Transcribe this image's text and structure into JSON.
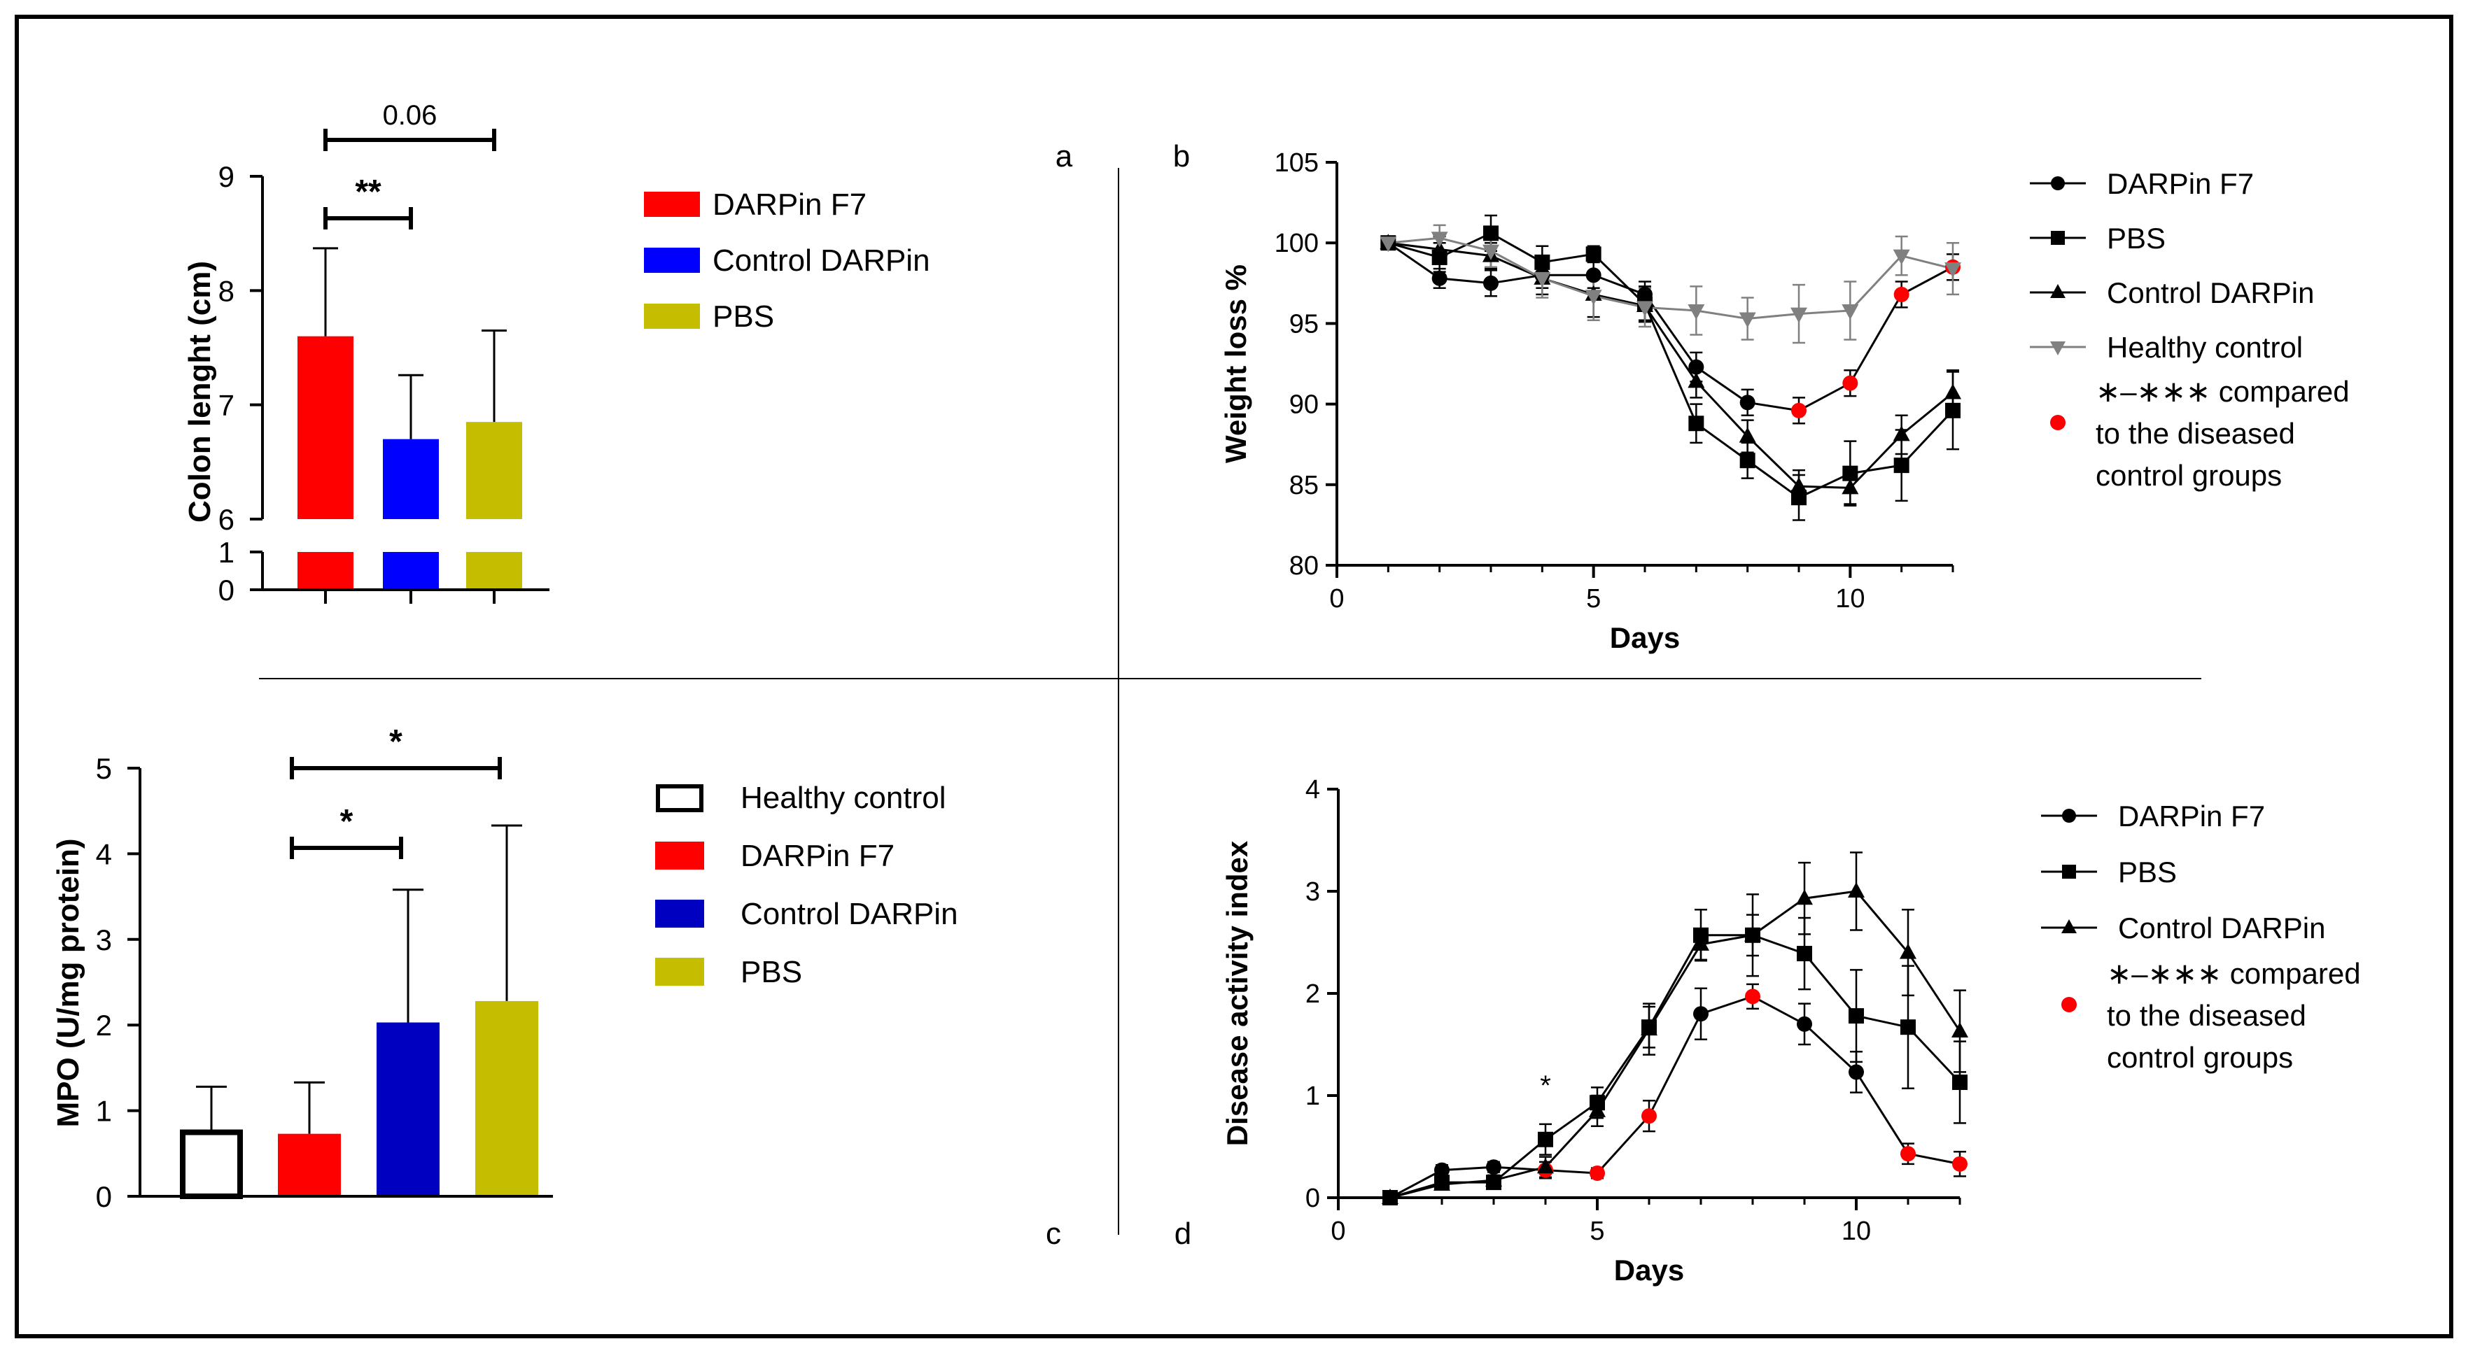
{
  "panel_labels": {
    "a": "a",
    "b": "b",
    "c": "c",
    "d": "d"
  },
  "colors": {
    "red": "#ff0000",
    "blue": "#0000ff",
    "darkblue": "#0000c0",
    "olive": "#c4bd00",
    "gray": "#808080",
    "black": "#000000",
    "white": "#ffffff",
    "sigRed": "#ff0000"
  },
  "chart_data": [
    {
      "id": "a",
      "type": "bar",
      "ylabel": "Colon lenght (cm)",
      "broken_axis": true,
      "ylim_lower": [
        0,
        1
      ],
      "ylim_upper": [
        6,
        9
      ],
      "yticks_lower": [
        "0",
        "1"
      ],
      "yticks_upper": [
        "6",
        "7",
        "8",
        "9"
      ],
      "categories": [
        "DARPin F7",
        "Control DARPin",
        "PBS"
      ],
      "values": [
        7.6,
        6.7,
        6.85
      ],
      "errors": [
        0.77,
        0.56,
        0.8
      ],
      "colors": [
        "red",
        "blue",
        "olive"
      ],
      "legend": [
        "DARPin F7",
        "Control DARPin",
        "PBS"
      ],
      "annotations": [
        {
          "label": "**",
          "from": 0,
          "to": 1,
          "level": "low"
        },
        {
          "label": "0.06",
          "from": 0,
          "to": 2,
          "level": "high"
        }
      ]
    },
    {
      "id": "b",
      "type": "line",
      "xlabel": "Days",
      "ylabel": "Weight loss %",
      "xlim": [
        0,
        12
      ],
      "ylim": [
        80,
        105
      ],
      "xticks": [
        0,
        5,
        10
      ],
      "xtick_labels": [
        "0",
        "5",
        "10"
      ],
      "yticks": [
        80,
        85,
        90,
        95,
        100,
        105
      ],
      "ytick_labels": [
        "80",
        "85",
        "90",
        "95",
        "100",
        "105"
      ],
      "x": [
        1,
        2,
        3,
        4,
        5,
        6,
        7,
        8,
        9,
        10,
        11,
        12
      ],
      "series": [
        {
          "name": "DARPin F7",
          "marker": "circle",
          "color": "black",
          "values": [
            100,
            97.8,
            97.5,
            98,
            98,
            96.8,
            92.3,
            90.1,
            89.6,
            91.3,
            96.8,
            98.5
          ],
          "errors": [
            0,
            0.6,
            0.8,
            0.8,
            0.8,
            0.8,
            0.9,
            0.8,
            0.8,
            0.8,
            0.8,
            0.8
          ],
          "sig_red": [
            false,
            false,
            false,
            false,
            false,
            false,
            false,
            false,
            true,
            true,
            true,
            true
          ]
        },
        {
          "name": "PBS",
          "marker": "square",
          "color": "black",
          "values": [
            100,
            99.1,
            100.6,
            98.8,
            99.3,
            96.2,
            88.8,
            86.5,
            84.2,
            85.7,
            86.2,
            89.6
          ],
          "errors": [
            0,
            0.9,
            1.1,
            1.0,
            0.5,
            1.1,
            1.2,
            1.1,
            1.4,
            2.0,
            2.2,
            2.4
          ],
          "sig_red": [
            false,
            false,
            false,
            false,
            false,
            false,
            false,
            false,
            false,
            false,
            false,
            false
          ]
        },
        {
          "name": "Control DARPin",
          "marker": "triangle",
          "color": "black",
          "values": [
            100,
            99.6,
            99.2,
            97.8,
            96.8,
            96.1,
            91.4,
            88.0,
            84.9,
            84.8,
            88.1,
            90.7
          ],
          "errors": [
            0,
            0.8,
            0.8,
            1.0,
            1.4,
            0.9,
            1.0,
            1.0,
            1.0,
            1.0,
            1.2,
            1.4
          ],
          "sig_red": [
            false,
            false,
            false,
            false,
            false,
            false,
            false,
            false,
            false,
            false,
            false,
            false
          ]
        },
        {
          "name": "Healthy control",
          "marker": "triangle-down",
          "color": "gray",
          "values": [
            100,
            100.3,
            99.5,
            97.8,
            96.7,
            96.0,
            95.8,
            95.3,
            95.6,
            95.8,
            99.2,
            98.4
          ],
          "errors": [
            0,
            0.8,
            1.0,
            1.2,
            1.5,
            1.2,
            1.5,
            1.3,
            1.8,
            1.8,
            1.2,
            1.6
          ],
          "sig_red": [
            false,
            false,
            false,
            false,
            false,
            false,
            false,
            false,
            false,
            false,
            false,
            false
          ]
        }
      ],
      "legend": [
        "DARPin F7",
        "PBS",
        "Control DARPin",
        "Healthy control"
      ],
      "legend_note": [
        "∗–∗∗∗ compared",
        "to the diseased",
        "control groups"
      ]
    },
    {
      "id": "c",
      "type": "bar",
      "ylabel": "MPO (U/mg protein)",
      "ylim": [
        0,
        5
      ],
      "yticks": [
        "0",
        "1",
        "2",
        "3",
        "4",
        "5"
      ],
      "categories": [
        "Healthy control",
        "DARPin F7",
        "Control DARPin",
        "PBS"
      ],
      "values": [
        0.78,
        0.73,
        2.03,
        2.28
      ],
      "errors": [
        0.5,
        0.6,
        1.55,
        2.05
      ],
      "colors": [
        "white",
        "red",
        "darkblue",
        "olive"
      ],
      "legend": [
        "Healthy control",
        "DARPin F7",
        "Control DARPin",
        "PBS"
      ],
      "annotations": [
        {
          "label": "*",
          "from": 1,
          "to": 2,
          "level": "low"
        },
        {
          "label": "*",
          "from": 1,
          "to": 3,
          "level": "high"
        }
      ]
    },
    {
      "id": "d",
      "type": "line",
      "xlabel": "Days",
      "ylabel": "Disease activity index",
      "xlim": [
        0,
        12
      ],
      "ylim": [
        0,
        4
      ],
      "xticks": [
        0,
        5,
        10
      ],
      "xtick_labels": [
        "0",
        "5",
        "10"
      ],
      "yticks": [
        0,
        1,
        2,
        3,
        4
      ],
      "ytick_labels": [
        "0",
        "1",
        "2",
        "3",
        "4"
      ],
      "x": [
        1,
        2,
        3,
        4,
        5,
        6,
        7,
        8,
        9,
        10,
        11,
        12
      ],
      "series": [
        {
          "name": "DARPin F7",
          "marker": "circle",
          "color": "black",
          "values": [
            0,
            0.27,
            0.3,
            0.27,
            0.24,
            0.8,
            1.8,
            1.97,
            1.7,
            1.23,
            0.43,
            0.33
          ],
          "errors": [
            0,
            0.05,
            0.05,
            0.08,
            0.05,
            0.15,
            0.25,
            0.12,
            0.2,
            0.2,
            0.1,
            0.12
          ],
          "sig_red": [
            false,
            false,
            false,
            true,
            true,
            true,
            false,
            true,
            false,
            false,
            true,
            true
          ]
        },
        {
          "name": "PBS",
          "marker": "square",
          "color": "black",
          "values": [
            0,
            0.15,
            0.15,
            0.57,
            0.93,
            1.67,
            2.57,
            2.57,
            2.39,
            1.78,
            1.67,
            1.13
          ],
          "errors": [
            0,
            0.05,
            0.05,
            0.15,
            0.15,
            0.2,
            0.25,
            0.4,
            0.35,
            0.45,
            0.6,
            0.4
          ],
          "sig_red": [
            false,
            false,
            false,
            false,
            false,
            false,
            false,
            false,
            false,
            false,
            false,
            false
          ]
        },
        {
          "name": "Control DARPin",
          "marker": "triangle",
          "color": "black",
          "values": [
            0,
            0.13,
            0.17,
            0.3,
            0.85,
            1.65,
            2.48,
            2.57,
            2.93,
            3.0,
            2.4,
            1.63
          ],
          "errors": [
            0,
            0.05,
            0.05,
            0.1,
            0.15,
            0.25,
            0.15,
            0.2,
            0.35,
            0.38,
            0.42,
            0.4
          ],
          "sig_red": [
            false,
            false,
            false,
            false,
            false,
            false,
            false,
            false,
            false,
            false,
            false,
            false
          ]
        }
      ],
      "star_annotation": {
        "x": 4,
        "label": "*"
      },
      "legend": [
        "DARPin F7",
        "PBS",
        "Control DARPin"
      ],
      "legend_note": [
        "∗–∗∗∗ compared",
        "to the diseased",
        "control groups"
      ]
    }
  ]
}
